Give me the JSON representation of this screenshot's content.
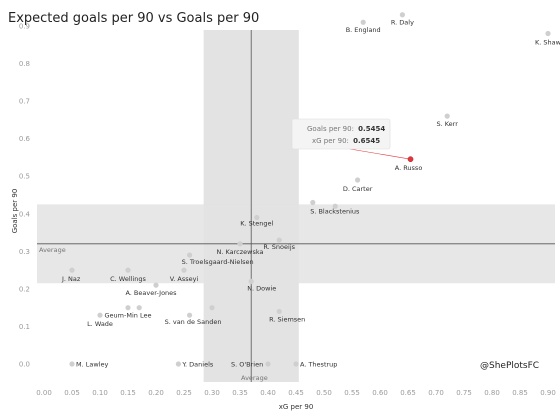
{
  "chart_data": {
    "type": "scatter",
    "title": "Expected goals per 90 vs Goals per 90",
    "xlabel": "xG per 90",
    "ylabel": "Goals per 90",
    "xlim": [
      0,
      0.95
    ],
    "ylim": [
      0,
      0.95
    ],
    "x_ticks": [
      "0.00",
      "0.05",
      "0.10",
      "0.15",
      "0.20",
      "0.25",
      "0.30",
      "0.35",
      "0.40",
      "0.45",
      "0.50",
      "0.55",
      "0.60",
      "0.65",
      "0.70",
      "0.75",
      "0.80",
      "0.85",
      "0.90",
      "0.95"
    ],
    "y_ticks": [
      "0.0",
      "0.1",
      "0.2",
      "0.3",
      "0.4",
      "0.5",
      "0.6",
      "0.7",
      "0.8",
      "0.9"
    ],
    "grid": false,
    "average_x": 0.37,
    "average_y": 0.32,
    "x_band": [
      0.285,
      0.455
    ],
    "y_band": [
      0.215,
      0.425
    ],
    "average_label": "Average",
    "handle": "@ShePlotsFC",
    "highlight_color": "#e0353a",
    "point_color": "#cfcfcf",
    "points": [
      {
        "name": "B. England",
        "x": 0.57,
        "y": 0.91
      },
      {
        "name": "R. Daly",
        "x": 0.64,
        "y": 0.93
      },
      {
        "name": "K. Shaw",
        "x": 0.9,
        "y": 0.88
      },
      {
        "name": "S. Kerr",
        "x": 0.72,
        "y": 0.66
      },
      {
        "name": "A. Russo",
        "x": 0.6545,
        "y": 0.5454
      },
      {
        "name": "D. Carter",
        "x": 0.56,
        "y": 0.49
      },
      {
        "name": "S. Blackstenius",
        "x": 0.48,
        "y": 0.43
      },
      {
        "name": "",
        "x": 0.52,
        "y": 0.42
      },
      {
        "name": "K. Stengel",
        "x": 0.38,
        "y": 0.39
      },
      {
        "name": "R. Snoeijs",
        "x": 0.42,
        "y": 0.33
      },
      {
        "name": "N. Karczewska",
        "x": 0.35,
        "y": 0.32
      },
      {
        "name": "S. Troelsgaard-Nielsen",
        "x": 0.26,
        "y": 0.29
      },
      {
        "name": "J. Naz",
        "x": 0.05,
        "y": 0.25
      },
      {
        "name": "C. Wellings",
        "x": 0.15,
        "y": 0.25
      },
      {
        "name": "V. Asseyi",
        "x": 0.25,
        "y": 0.25
      },
      {
        "name": "A. Beaver-Jones",
        "x": 0.2,
        "y": 0.21
      },
      {
        "name": "N. Dowie",
        "x": 0.37,
        "y": 0.22
      },
      {
        "name": "",
        "x": 0.17,
        "y": 0.15
      },
      {
        "name": "",
        "x": 0.3,
        "y": 0.15
      },
      {
        "name": "Geum-Min Lee",
        "x": 0.15,
        "y": 0.15
      },
      {
        "name": "L. Wade",
        "x": 0.1,
        "y": 0.13
      },
      {
        "name": "S. van de Sanden",
        "x": 0.26,
        "y": 0.13
      },
      {
        "name": "R. Siemsen",
        "x": 0.42,
        "y": 0.14
      },
      {
        "name": "M. Lawley",
        "x": 0.05,
        "y": 0.0
      },
      {
        "name": "Y. Daniels",
        "x": 0.24,
        "y": 0.0
      },
      {
        "name": "S. O'Brien",
        "x": 0.4,
        "y": 0.0
      },
      {
        "name": "A. Thestrup",
        "x": 0.45,
        "y": 0.0
      }
    ],
    "tooltip": {
      "goals_label": "Goals per 90:",
      "goals_value": "0.5454",
      "xg_label": "xG per 90:",
      "xg_value": "0.6545"
    }
  }
}
